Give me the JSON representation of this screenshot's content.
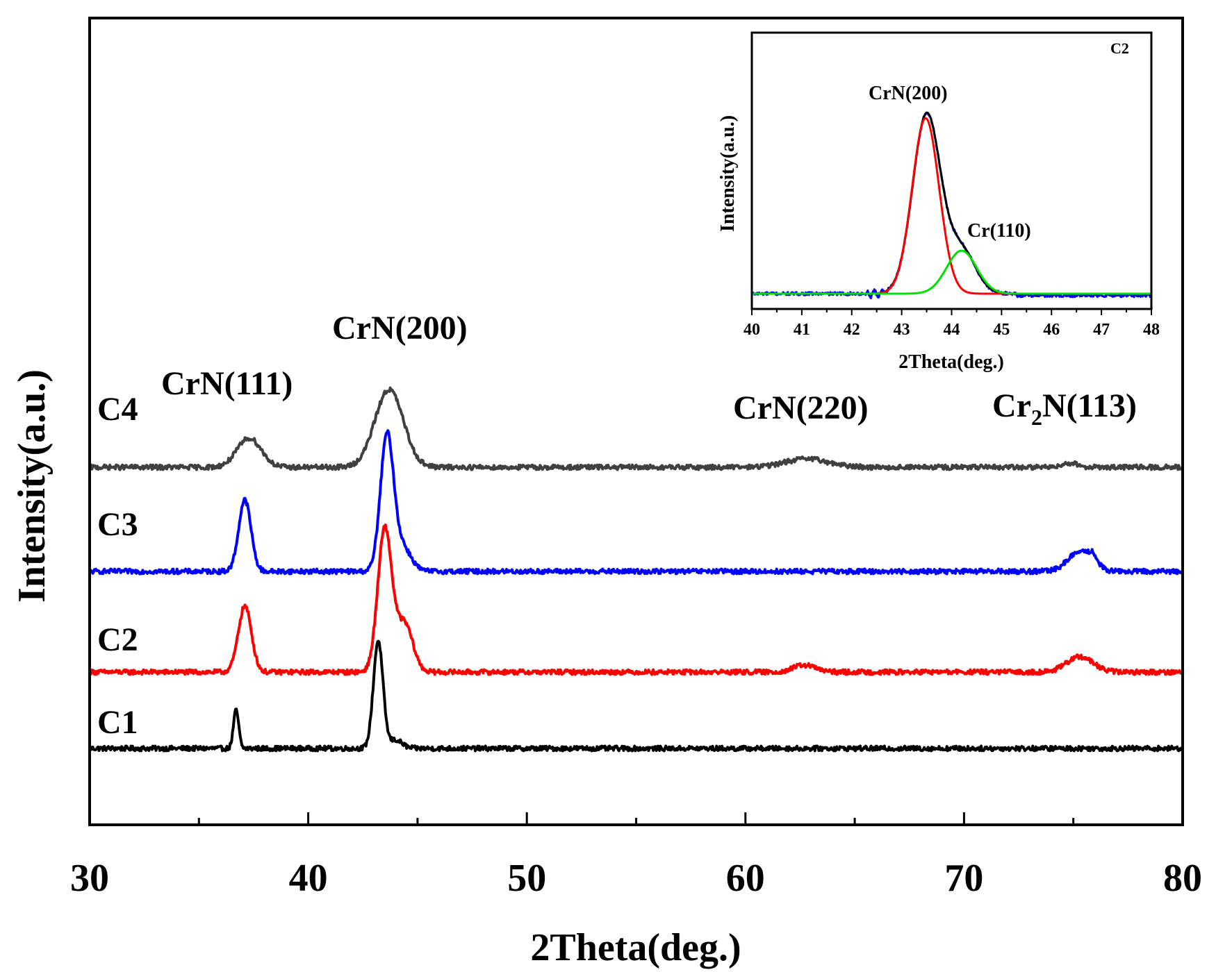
{
  "chart_data": [
    {
      "type": "line",
      "title": "",
      "xlabel": "2Theta(deg.)",
      "ylabel": "Intensity(a.u.)",
      "xlim": [
        30,
        80
      ],
      "xticks": [
        30,
        40,
        50,
        60,
        70,
        80
      ],
      "yticks_shown": false,
      "series": [
        {
          "name": "C1",
          "color": "#000000",
          "baseline": 0.0,
          "peaks": [
            {
              "x": 36.7,
              "height": 0.55,
              "width": 0.12
            },
            {
              "x": 43.2,
              "height": 1.55,
              "width": 0.22
            },
            {
              "x": 44.0,
              "height": 0.12,
              "width": 0.3
            }
          ]
        },
        {
          "name": "C2",
          "color": "#ff0000",
          "baseline": 1.1,
          "peaks": [
            {
              "x": 37.1,
              "height": 0.95,
              "width": 0.3
            },
            {
              "x": 43.5,
              "height": 2.05,
              "width": 0.32
            },
            {
              "x": 44.4,
              "height": 0.7,
              "width": 0.38
            },
            {
              "x": 62.7,
              "height": 0.1,
              "width": 0.5
            },
            {
              "x": 75.3,
              "height": 0.22,
              "width": 0.6
            }
          ]
        },
        {
          "name": "C3",
          "color": "#0000ff",
          "baseline": 2.55,
          "peaks": [
            {
              "x": 37.1,
              "height": 1.03,
              "width": 0.28
            },
            {
              "x": 43.6,
              "height": 1.93,
              "width": 0.3
            },
            {
              "x": 44.3,
              "height": 0.35,
              "width": 0.4
            },
            {
              "x": 75.3,
              "height": 0.28,
              "width": 0.55
            },
            {
              "x": 75.9,
              "height": 0.12,
              "width": 0.2
            }
          ]
        },
        {
          "name": "C4",
          "color": "#404040",
          "baseline": 4.05,
          "peaks": [
            {
              "x": 37.3,
              "height": 0.42,
              "width": 0.55
            },
            {
              "x": 43.7,
              "height": 1.12,
              "width": 0.65
            },
            {
              "x": 62.8,
              "height": 0.12,
              "width": 1.0
            },
            {
              "x": 74.8,
              "height": 0.06,
              "width": 0.4
            }
          ]
        }
      ],
      "peak_labels": [
        {
          "text": "CrN(111)"
        },
        {
          "text": "CrN(200)"
        },
        {
          "text": "CrN(220)"
        },
        {
          "text_main": "Cr",
          "text_sub": "2",
          "text_rest": "N(113)"
        }
      ]
    },
    {
      "type": "line",
      "title": "C2",
      "xlabel": "2Theta(deg.)",
      "ylabel": "Intensity(a.u.)",
      "xlim": [
        40,
        48
      ],
      "xticks": [
        40,
        41,
        42,
        43,
        44,
        45,
        46,
        47,
        48
      ],
      "series": [
        {
          "name": "measured",
          "color": "#0000ff",
          "peaks": [
            {
              "x": 43.5,
              "height": 1.0,
              "width": 0.28
            },
            {
              "x": 44.2,
              "height": 0.24,
              "width": 0.28
            }
          ]
        },
        {
          "name": "fit",
          "color": "#000000",
          "peaks": [
            {
              "x": 43.5,
              "height": 1.0,
              "width": 0.28
            },
            {
              "x": 44.2,
              "height": 0.24,
              "width": 0.28
            }
          ]
        },
        {
          "name": "CrN(200) component",
          "color": "#ff0000",
          "peaks": [
            {
              "x": 43.48,
              "height": 0.98,
              "width": 0.27
            }
          ]
        },
        {
          "name": "Cr(110) component",
          "color": "#00e000",
          "peaks": [
            {
              "x": 44.2,
              "height": 0.24,
              "width": 0.3
            }
          ]
        }
      ],
      "peak_labels": [
        {
          "text": "CrN(200)"
        },
        {
          "text": "Cr(110)"
        }
      ]
    }
  ]
}
